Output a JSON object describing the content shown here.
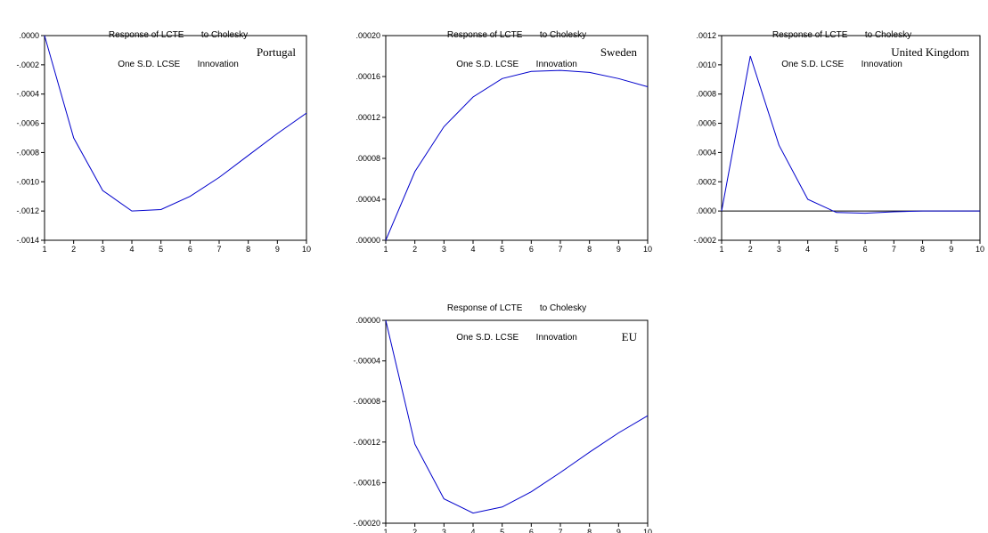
{
  "chart_data": [
    {
      "type": "line",
      "title_line1": "Response of LCTE       to Cholesky",
      "title_line2": "One S.D. LCSE       Innovation",
      "label": "Portugal",
      "x": [
        1,
        2,
        3,
        4,
        5,
        6,
        7,
        8,
        9,
        10
      ],
      "series": [
        {
          "values": [
            0.0,
            -0.0007,
            -0.00106,
            -0.0012,
            -0.00119,
            -0.0011,
            -0.00097,
            -0.00082,
            -0.00067,
            -0.00053
          ]
        }
      ],
      "ylim": [
        -0.0014,
        0.0
      ],
      "yticks": [
        ".0000",
        "-.0002",
        "-.0004",
        "-.0006",
        "-.0008",
        "-.0010",
        "-.0012",
        "-.0014"
      ],
      "ytick_values": [
        0.0,
        -0.0002,
        -0.0004,
        -0.0006,
        -0.0008,
        -0.001,
        -0.0012,
        -0.0014
      ],
      "xticks": [
        "1",
        "2",
        "3",
        "4",
        "5",
        "6",
        "7",
        "8",
        "9",
        "10"
      ],
      "zero_line": false,
      "line_color": "#0000cc"
    },
    {
      "type": "line",
      "title_line1": "Response of LCTE       to Cholesky",
      "title_line2": "One S.D. LCSE       Innovation",
      "label": "Sweden",
      "x": [
        1,
        2,
        3,
        4,
        5,
        6,
        7,
        8,
        9,
        10
      ],
      "series": [
        {
          "values": [
            0.0,
            6.7e-05,
            0.000111,
            0.00014,
            0.000158,
            0.000165,
            0.000166,
            0.000164,
            0.000158,
            0.00015
          ]
        }
      ],
      "ylim": [
        0.0,
        0.0002
      ],
      "yticks": [
        ".00020",
        ".00016",
        ".00012",
        ".00008",
        ".00004",
        ".00000"
      ],
      "ytick_values": [
        0.0002,
        0.00016,
        0.00012,
        8e-05,
        4e-05,
        0.0
      ],
      "xticks": [
        "1",
        "2",
        "3",
        "4",
        "5",
        "6",
        "7",
        "8",
        "9",
        "10"
      ],
      "zero_line": false,
      "line_color": "#0000cc"
    },
    {
      "type": "line",
      "title_line1": "Response of LCTE       to Cholesky",
      "title_line2": "One S.D. LCSE       Innovation",
      "label": "United Kingdom",
      "x": [
        1,
        2,
        3,
        4,
        5,
        6,
        7,
        8,
        9,
        10
      ],
      "series": [
        {
          "values": [
            0.0,
            0.00106,
            0.00045,
            8e-05,
            -1e-05,
            -1.5e-05,
            -5e-06,
            0.0,
            0.0,
            0.0
          ]
        }
      ],
      "ylim": [
        -0.0002,
        0.0012
      ],
      "yticks": [
        ".0012",
        ".0010",
        ".0008",
        ".0006",
        ".0004",
        ".0002",
        ".0000",
        "-.0002"
      ],
      "ytick_values": [
        0.0012,
        0.001,
        0.0008,
        0.0006,
        0.0004,
        0.0002,
        0.0,
        -0.0002
      ],
      "xticks": [
        "1",
        "2",
        "3",
        "4",
        "5",
        "6",
        "7",
        "8",
        "9",
        "10"
      ],
      "zero_line": true,
      "line_color": "#0000cc"
    },
    {
      "type": "line",
      "title_line1": "Response of LCTE       to Cholesky",
      "title_line2": "One S.D. LCSE       Innovation",
      "label": "EU",
      "x": [
        1,
        2,
        3,
        4,
        5,
        6,
        7,
        8,
        9,
        10
      ],
      "series": [
        {
          "values": [
            0.0,
            -0.000122,
            -0.000176,
            -0.00019,
            -0.000184,
            -0.000169,
            -0.00015,
            -0.00013,
            -0.000111,
            -9.4e-05
          ]
        }
      ],
      "ylim": [
        -0.0002,
        0.0
      ],
      "yticks": [
        ".00000",
        "-.00004",
        "-.00008",
        "-.00012",
        "-.00016",
        "-.00020"
      ],
      "ytick_values": [
        0.0,
        -4e-05,
        -8e-05,
        -0.00012,
        -0.00016,
        -0.0002
      ],
      "xticks": [
        "1",
        "2",
        "3",
        "4",
        "5",
        "6",
        "7",
        "8",
        "9",
        "10"
      ],
      "zero_line": false,
      "line_color": "#0000cc"
    }
  ]
}
